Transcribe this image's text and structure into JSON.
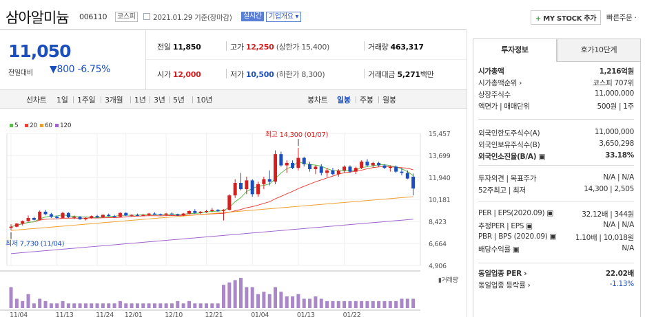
{
  "header": {
    "title": "삼아알미늄",
    "code": "006110",
    "market": "코스피",
    "date": "2021.01.29 기준(장마감)",
    "realtime": "실시간",
    "company_info": "기업개요 ▾",
    "mystock": "MY STOCK 추가",
    "mystock_plus": "+",
    "quick_order": "빠른주문 ·"
  },
  "price": {
    "current": "11,050",
    "change_label": "전일대비",
    "change": "▼800",
    "change_pct": "-6.75%"
  },
  "quote": {
    "prev_label": "전일",
    "prev": "11,850",
    "high_label": "고가",
    "high": "12,250",
    "high_limit": "(상한가 15,400)",
    "volume_label": "거래량",
    "volume": "463,317",
    "open_label": "시가",
    "open": "12,000",
    "low_label": "저가",
    "low": "10,500",
    "low_limit": "(하한가 8,300)",
    "amount_label": "거래대금",
    "amount": "5,271",
    "amount_unit": "백만"
  },
  "period_tabs": [
    "선차트",
    "1일",
    "1주일",
    "3개월",
    "1년",
    "3년",
    "5년",
    "10년"
  ],
  "candle_tabs": [
    "봉차트",
    "일봉",
    "주봉",
    "월봉"
  ],
  "colors": {
    "up": "#d42020",
    "down": "#1b4fbd",
    "ma5": "#5bbd4a",
    "ma20": "#e8443a",
    "ma60": "#f0a030",
    "ma120": "#a064d0",
    "volume": "#a987c8"
  },
  "chart_data": {
    "type": "candlestick",
    "legend": [
      "5",
      "20",
      "60",
      "120"
    ],
    "y_ticks": [
      "15,457",
      "13,699",
      "11,940",
      "10,181",
      "8,423",
      "6,664",
      "4,906"
    ],
    "ylim": [
      4906,
      15457
    ],
    "x_labels": [
      "11/04",
      "11/13",
      "11/24",
      "12/01",
      "12/10",
      "12/21",
      "01/04",
      "01/13",
      "01/22"
    ],
    "annotation_high": "최고 14,300 (01/07)",
    "annotation_low": "최저 7,730 (11/04)",
    "volume_label": "거래량",
    "ohlc": [
      [
        7900,
        8200,
        7730,
        8000
      ],
      [
        8000,
        8300,
        7950,
        8250
      ],
      [
        8250,
        8500,
        8100,
        8450
      ],
      [
        8450,
        8900,
        8400,
        8700
      ],
      [
        8700,
        8800,
        8500,
        8550
      ],
      [
        8550,
        9300,
        8500,
        9200
      ],
      [
        9200,
        9350,
        8900,
        9000
      ],
      [
        9000,
        9100,
        8700,
        8800
      ],
      [
        8800,
        8900,
        8600,
        8700
      ],
      [
        8700,
        9200,
        8650,
        9100
      ],
      [
        9100,
        9150,
        8700,
        8750
      ],
      [
        8750,
        8900,
        8600,
        8800
      ],
      [
        8800,
        8850,
        8550,
        8600
      ],
      [
        8600,
        8750,
        8500,
        8700
      ],
      [
        8700,
        8900,
        8650,
        8850
      ],
      [
        8850,
        8950,
        8700,
        8750
      ],
      [
        8750,
        9000,
        8700,
        8950
      ],
      [
        8950,
        9050,
        8800,
        8850
      ],
      [
        8850,
        8950,
        8750,
        8800
      ],
      [
        8800,
        9150,
        8750,
        9100
      ],
      [
        9100,
        9150,
        8850,
        8900
      ],
      [
        8900,
        9000,
        8800,
        8950
      ],
      [
        8950,
        9050,
        8850,
        8900
      ],
      [
        8900,
        9000,
        8850,
        8950
      ],
      [
        8950,
        9100,
        8900,
        9050
      ],
      [
        9050,
        9150,
        8950,
        9000
      ],
      [
        9000,
        9050,
        8900,
        8950
      ],
      [
        8950,
        9100,
        8900,
        9050
      ],
      [
        9050,
        9150,
        8950,
        9000
      ],
      [
        9000,
        9050,
        8850,
        8900
      ],
      [
        8900,
        9100,
        8850,
        9050
      ],
      [
        9050,
        9300,
        9000,
        9250
      ],
      [
        9250,
        9400,
        9050,
        9100
      ],
      [
        9100,
        9250,
        9000,
        9200
      ],
      [
        9200,
        9350,
        9100,
        9250
      ],
      [
        9250,
        9500,
        9150,
        9350
      ],
      [
        9350,
        9400,
        9200,
        9300
      ],
      [
        9300,
        9400,
        8500,
        9350
      ],
      [
        9350,
        10600,
        9300,
        10500
      ],
      [
        10500,
        11800,
        10300,
        11500
      ],
      [
        11500,
        12300,
        10900,
        11000
      ],
      [
        11000,
        12000,
        10600,
        11700
      ],
      [
        11700,
        11800,
        10400,
        10600
      ],
      [
        10600,
        11600,
        10400,
        11400
      ],
      [
        11400,
        12000,
        11000,
        11800
      ],
      [
        11800,
        12500,
        11300,
        11600
      ],
      [
        11600,
        14100,
        11400,
        13800
      ],
      [
        13800,
        14000,
        12800,
        12900
      ],
      [
        12900,
        13300,
        12300,
        13100
      ],
      [
        13100,
        13300,
        12600,
        12700
      ],
      [
        12700,
        14300,
        12500,
        13500
      ],
      [
        13500,
        13600,
        12800,
        13000
      ],
      [
        13000,
        13200,
        12400,
        12600
      ],
      [
        12600,
        12900,
        12200,
        12800
      ],
      [
        12800,
        13000,
        12100,
        12300
      ],
      [
        12300,
        12700,
        12000,
        12500
      ],
      [
        12500,
        12700,
        12100,
        12200
      ],
      [
        12200,
        12600,
        12000,
        12500
      ],
      [
        12500,
        12900,
        12300,
        12800
      ],
      [
        12800,
        12900,
        12300,
        12400
      ],
      [
        12400,
        12800,
        12200,
        12700
      ],
      [
        12700,
        13300,
        12600,
        13200
      ],
      [
        13200,
        13400,
        12800,
        12900
      ],
      [
        12900,
        13200,
        12700,
        13100
      ],
      [
        13100,
        13200,
        12800,
        12900
      ],
      [
        12900,
        13000,
        12600,
        12700
      ],
      [
        12700,
        12900,
        12400,
        12800
      ],
      [
        12800,
        12900,
        12300,
        12400
      ],
      [
        12400,
        12700,
        12100,
        12300
      ],
      [
        12300,
        12500,
        11800,
        11850
      ],
      [
        12000,
        12250,
        10500,
        11050
      ]
    ],
    "volume": [
      9,
      4,
      3,
      6,
      2,
      4,
      3,
      2,
      2,
      3,
      2,
      2,
      2,
      2,
      2,
      2,
      2,
      2,
      2,
      3,
      2,
      2,
      2,
      2,
      2,
      2,
      2,
      2,
      2,
      3,
      2,
      3,
      2,
      2,
      2,
      2,
      2,
      10,
      11,
      12,
      13,
      9,
      9,
      6,
      7,
      6,
      9,
      7,
      5,
      5,
      6,
      4,
      4,
      5,
      4,
      3,
      3,
      3,
      3,
      3,
      3,
      3,
      3,
      3,
      3,
      3,
      3,
      3,
      4,
      4,
      4
    ]
  },
  "invest": {
    "tab_info": "투자정보",
    "tab_order": "호가10단계",
    "rows1": [
      {
        "label": "시가총액",
        "value": "1,216억원"
      },
      {
        "label": "시가총액순위 ›",
        "value": "코스피 707위"
      },
      {
        "label": "상장주식수",
        "value": "11,000,000"
      },
      {
        "label": "액면가 | 매매단위",
        "value": "500원 | 1주"
      }
    ],
    "rows2": [
      {
        "label": "외국인한도주식수(A)",
        "value": "11,000,000"
      },
      {
        "label": "외국인보유주식수(B)",
        "value": "3,650,298"
      },
      {
        "label": "외국인소진율(B/A) ▣",
        "value": "33.18%"
      }
    ],
    "rows3": [
      {
        "label": "투자의견 | 목표주가",
        "value": "N/A | N/A"
      },
      {
        "label": "52주최고 | 최저",
        "value": "14,300 | 2,505"
      }
    ],
    "rows4": [
      {
        "label": "PER | EPS(2020.09) ▣",
        "value": "32.12배 | 344원"
      },
      {
        "label": "추정PER | EPS ▣",
        "value": "N/A | N/A"
      },
      {
        "label": "PBR | BPS (2020.09) ▣",
        "value": "1.10배 | 10,018원"
      },
      {
        "label": "배당수익률 ▣",
        "value": "N/A"
      }
    ],
    "rows5": [
      {
        "label": "동일업종 PER ›",
        "value": "22.02배"
      },
      {
        "label": "동일업종 등락률 ›",
        "value": "-1.13%"
      }
    ]
  }
}
